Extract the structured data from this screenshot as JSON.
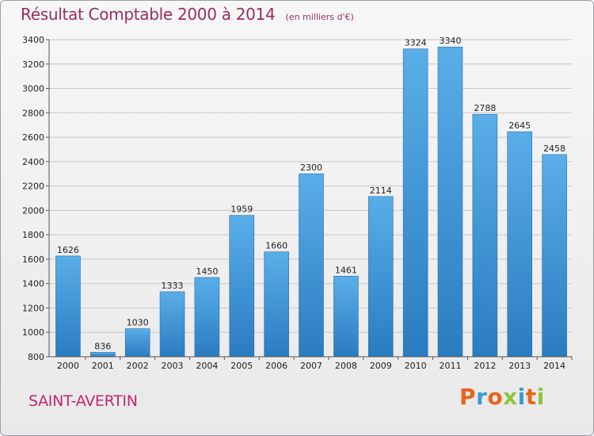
{
  "header": {
    "title": "Résultat Comptable 2000 à 2014",
    "subtitle": "(en milliers d'€)"
  },
  "place": "SAINT-AVERTIN",
  "logo": {
    "text": "Proxiti",
    "letter_colors": [
      "#e8641b",
      "#3a9bd6",
      "#e8641b",
      "#8cc63f",
      "#3a9bd6",
      "#e8641b",
      "#8cc63f"
    ]
  },
  "colors": {
    "bar_light": "#5aaee8",
    "bar_dark": "#2a7cc0",
    "title": "#9a2e5f",
    "place": "#c0286f"
  },
  "chart_data": {
    "type": "bar",
    "title": "Résultat Comptable 2000 à 2014",
    "subtitle": "(en milliers d'€)",
    "categories": [
      "2000",
      "2001",
      "2002",
      "2003",
      "2004",
      "2005",
      "2006",
      "2007",
      "2008",
      "2009",
      "2010",
      "2011",
      "2012",
      "2013",
      "2014"
    ],
    "values": [
      1626,
      836,
      1030,
      1333,
      1450,
      1959,
      1660,
      2300,
      1461,
      2114,
      3324,
      3340,
      2788,
      2645,
      2458
    ],
    "ylim": [
      800,
      3400
    ],
    "yticks": [
      800,
      1000,
      1200,
      1400,
      1600,
      1800,
      2000,
      2200,
      2400,
      2600,
      2800,
      3000,
      3200,
      3400
    ],
    "grid": true,
    "data_labels": true
  }
}
